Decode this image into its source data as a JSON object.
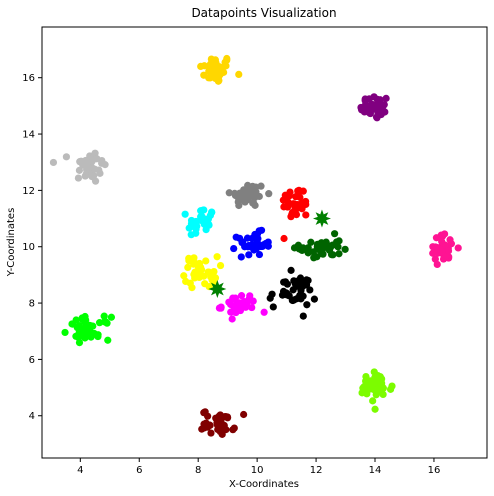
{
  "chart_data": {
    "type": "scatter",
    "title": "Datapoints Visualization",
    "xlabel": "X-Coordinates",
    "ylabel": "Y-Coordinates",
    "xlim": [
      2.7,
      17.8
    ],
    "ylim": [
      2.5,
      17.8
    ],
    "xticks": [
      4,
      6,
      8,
      10,
      12,
      14,
      16
    ],
    "yticks": [
      4,
      6,
      8,
      10,
      12,
      14,
      16
    ],
    "grid": false,
    "legend": "none",
    "clusters": [
      {
        "color": "#ffd700",
        "cx": 8.6,
        "cy": 16.3,
        "sx": 0.28,
        "sy": 0.25,
        "n": 40
      },
      {
        "color": "#800080",
        "cx": 14.0,
        "cy": 14.95,
        "sx": 0.25,
        "sy": 0.22,
        "n": 35
      },
      {
        "color": "#bbbbbb",
        "cx": 4.3,
        "cy": 12.85,
        "sx": 0.3,
        "sy": 0.3,
        "n": 35
      },
      {
        "color": "#808080",
        "cx": 9.7,
        "cy": 11.85,
        "sx": 0.3,
        "sy": 0.22,
        "n": 40
      },
      {
        "color": "#ff0000",
        "cx": 11.3,
        "cy": 11.55,
        "sx": 0.25,
        "sy": 0.3,
        "n": 35
      },
      {
        "color": "#00ffff",
        "cx": 8.1,
        "cy": 10.85,
        "sx": 0.22,
        "sy": 0.3,
        "n": 30
      },
      {
        "color": "#0000ff",
        "cx": 9.9,
        "cy": 10.1,
        "sx": 0.28,
        "sy": 0.2,
        "n": 35
      },
      {
        "color": "#006400",
        "cx": 12.15,
        "cy": 9.95,
        "sx": 0.35,
        "sy": 0.22,
        "n": 40
      },
      {
        "color": "#ff1493",
        "cx": 16.3,
        "cy": 9.95,
        "sx": 0.25,
        "sy": 0.25,
        "n": 35
      },
      {
        "color": "#ffff00",
        "cx": 8.1,
        "cy": 9.1,
        "sx": 0.28,
        "sy": 0.28,
        "n": 35
      },
      {
        "color": "#000000",
        "cx": 11.2,
        "cy": 8.4,
        "sx": 0.4,
        "sy": 0.3,
        "n": 40
      },
      {
        "color": "#ff00ff",
        "cx": 9.4,
        "cy": 7.9,
        "sx": 0.3,
        "sy": 0.2,
        "n": 35
      },
      {
        "color": "#00ff00",
        "cx": 4.3,
        "cy": 7.1,
        "sx": 0.35,
        "sy": 0.2,
        "n": 40
      },
      {
        "color": "#7cfc00",
        "cx": 14.0,
        "cy": 5.0,
        "sx": 0.3,
        "sy": 0.28,
        "n": 40
      },
      {
        "color": "#800000",
        "cx": 8.7,
        "cy": 3.75,
        "sx": 0.28,
        "sy": 0.22,
        "n": 35
      }
    ],
    "centroids": [
      {
        "color": "#008000",
        "x": 12.2,
        "y": 11.0,
        "marker": "star"
      },
      {
        "color": "#008000",
        "x": 8.65,
        "y": 8.5,
        "marker": "star"
      }
    ]
  }
}
